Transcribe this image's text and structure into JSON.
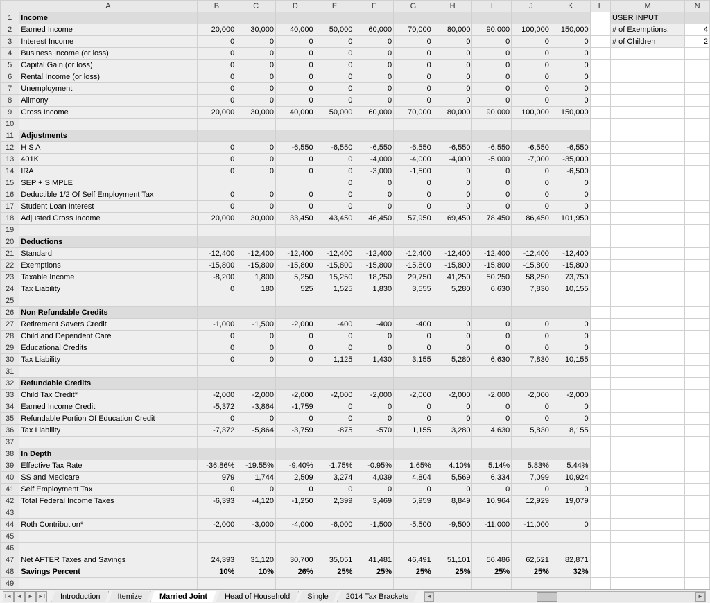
{
  "columns": [
    "",
    "A",
    "B",
    "C",
    "D",
    "E",
    "F",
    "G",
    "H",
    "I",
    "J",
    "K",
    "L",
    "M",
    "N"
  ],
  "user_input": {
    "header": "USER INPUT",
    "rows": [
      {
        "label": "# of Exemptions:",
        "value": "4"
      },
      {
        "label": "# of Children",
        "value": "2"
      }
    ]
  },
  "rows": [
    {
      "n": 1,
      "type": "section",
      "label": "Income"
    },
    {
      "n": 2,
      "type": "data",
      "label": "Earned Income",
      "vals": [
        "20,000",
        "30,000",
        "40,000",
        "50,000",
        "60,000",
        "70,000",
        "80,000",
        "90,000",
        "100,000",
        "150,000"
      ]
    },
    {
      "n": 3,
      "type": "data",
      "label": "Interest Income",
      "vals": [
        "0",
        "0",
        "0",
        "0",
        "0",
        "0",
        "0",
        "0",
        "0",
        "0"
      ]
    },
    {
      "n": 4,
      "type": "data",
      "label": "Business Income (or loss)",
      "vals": [
        "0",
        "0",
        "0",
        "0",
        "0",
        "0",
        "0",
        "0",
        "0",
        "0"
      ]
    },
    {
      "n": 5,
      "type": "data",
      "label": "Capital Gain (or loss)",
      "vals": [
        "0",
        "0",
        "0",
        "0",
        "0",
        "0",
        "0",
        "0",
        "0",
        "0"
      ]
    },
    {
      "n": 6,
      "type": "data",
      "label": "Rental Income (or loss)",
      "vals": [
        "0",
        "0",
        "0",
        "0",
        "0",
        "0",
        "0",
        "0",
        "0",
        "0"
      ]
    },
    {
      "n": 7,
      "type": "data",
      "label": "Unemployment",
      "vals": [
        "0",
        "0",
        "0",
        "0",
        "0",
        "0",
        "0",
        "0",
        "0",
        "0"
      ]
    },
    {
      "n": 8,
      "type": "data",
      "label": "Alimony",
      "vals": [
        "0",
        "0",
        "0",
        "0",
        "0",
        "0",
        "0",
        "0",
        "0",
        "0"
      ]
    },
    {
      "n": 9,
      "type": "data",
      "label": "Gross Income",
      "vals": [
        "20,000",
        "30,000",
        "40,000",
        "50,000",
        "60,000",
        "70,000",
        "80,000",
        "90,000",
        "100,000",
        "150,000"
      ]
    },
    {
      "n": 10,
      "type": "blank"
    },
    {
      "n": 11,
      "type": "section",
      "label": "Adjustments"
    },
    {
      "n": 12,
      "type": "data",
      "label": "H S A",
      "vals": [
        "0",
        "0",
        "-6,550",
        "-6,550",
        "-6,550",
        "-6,550",
        "-6,550",
        "-6,550",
        "-6,550",
        "-6,550"
      ]
    },
    {
      "n": 13,
      "type": "data",
      "label": "401K",
      "vals": [
        "0",
        "0",
        "0",
        "0",
        "-4,000",
        "-4,000",
        "-4,000",
        "-5,000",
        "-7,000",
        "-35,000"
      ]
    },
    {
      "n": 14,
      "type": "data",
      "label": "IRA",
      "vals": [
        "0",
        "0",
        "0",
        "0",
        "-3,000",
        "-1,500",
        "0",
        "0",
        "0",
        "-6,500"
      ]
    },
    {
      "n": 15,
      "type": "data",
      "label": "SEP + SIMPLE",
      "vals": [
        "",
        "",
        "",
        "0",
        "0",
        "0",
        "0",
        "0",
        "0",
        "0"
      ]
    },
    {
      "n": 16,
      "type": "data",
      "label": "Deductible 1/2 Of Self Employment Tax",
      "vals": [
        "0",
        "0",
        "0",
        "0",
        "0",
        "0",
        "0",
        "0",
        "0",
        "0"
      ]
    },
    {
      "n": 17,
      "type": "data",
      "label": "Student Loan Interest",
      "vals": [
        "0",
        "0",
        "0",
        "0",
        "0",
        "0",
        "0",
        "0",
        "0",
        "0"
      ]
    },
    {
      "n": 18,
      "type": "data",
      "label": "Adjusted Gross Income",
      "vals": [
        "20,000",
        "30,000",
        "33,450",
        "43,450",
        "46,450",
        "57,950",
        "69,450",
        "78,450",
        "86,450",
        "101,950"
      ]
    },
    {
      "n": 19,
      "type": "blank"
    },
    {
      "n": 20,
      "type": "section",
      "label": "Deductions"
    },
    {
      "n": 21,
      "type": "data",
      "label": "Standard",
      "vals": [
        "-12,400",
        "-12,400",
        "-12,400",
        "-12,400",
        "-12,400",
        "-12,400",
        "-12,400",
        "-12,400",
        "-12,400",
        "-12,400"
      ]
    },
    {
      "n": 22,
      "type": "data",
      "label": "Exemptions",
      "vals": [
        "-15,800",
        "-15,800",
        "-15,800",
        "-15,800",
        "-15,800",
        "-15,800",
        "-15,800",
        "-15,800",
        "-15,800",
        "-15,800"
      ]
    },
    {
      "n": 23,
      "type": "data",
      "label": "Taxable Income",
      "vals": [
        "-8,200",
        "1,800",
        "5,250",
        "15,250",
        "18,250",
        "29,750",
        "41,250",
        "50,250",
        "58,250",
        "73,750"
      ]
    },
    {
      "n": 24,
      "type": "data",
      "label": "Tax Liability",
      "vals": [
        "0",
        "180",
        "525",
        "1,525",
        "1,830",
        "3,555",
        "5,280",
        "6,630",
        "7,830",
        "10,155"
      ]
    },
    {
      "n": 25,
      "type": "blank"
    },
    {
      "n": 26,
      "type": "section",
      "label": "Non Refundable Credits"
    },
    {
      "n": 27,
      "type": "data",
      "label": "Retirement Savers Credit",
      "vals": [
        "-1,000",
        "-1,500",
        "-2,000",
        "-400",
        "-400",
        "-400",
        "0",
        "0",
        "0",
        "0"
      ]
    },
    {
      "n": 28,
      "type": "data",
      "label": "Child and Dependent Care",
      "vals": [
        "0",
        "0",
        "0",
        "0",
        "0",
        "0",
        "0",
        "0",
        "0",
        "0"
      ]
    },
    {
      "n": 29,
      "type": "data",
      "label": "Educational Credits",
      "vals": [
        "0",
        "0",
        "0",
        "0",
        "0",
        "0",
        "0",
        "0",
        "0",
        "0"
      ]
    },
    {
      "n": 30,
      "type": "data",
      "label": "Tax Liability",
      "vals": [
        "0",
        "0",
        "0",
        "1,125",
        "1,430",
        "3,155",
        "5,280",
        "6,630",
        "7,830",
        "10,155"
      ]
    },
    {
      "n": 31,
      "type": "blank"
    },
    {
      "n": 32,
      "type": "section",
      "label": "Refundable Credits"
    },
    {
      "n": 33,
      "type": "data",
      "label": "Child Tax Credit*",
      "vals": [
        "-2,000",
        "-2,000",
        "-2,000",
        "-2,000",
        "-2,000",
        "-2,000",
        "-2,000",
        "-2,000",
        "-2,000",
        "-2,000"
      ]
    },
    {
      "n": 34,
      "type": "data",
      "label": "Earned Income Credit",
      "vals": [
        "-5,372",
        "-3,864",
        "-1,759",
        "0",
        "0",
        "0",
        "0",
        "0",
        "0",
        "0"
      ]
    },
    {
      "n": 35,
      "type": "data",
      "label": "Refundable Portion Of Education Credit",
      "vals": [
        "0",
        "0",
        "0",
        "0",
        "0",
        "0",
        "0",
        "0",
        "0",
        "0"
      ]
    },
    {
      "n": 36,
      "type": "data",
      "label": "Tax Liability",
      "vals": [
        "-7,372",
        "-5,864",
        "-3,759",
        "-875",
        "-570",
        "1,155",
        "3,280",
        "4,630",
        "5,830",
        "8,155"
      ]
    },
    {
      "n": 37,
      "type": "blank"
    },
    {
      "n": 38,
      "type": "section",
      "label": "In Depth"
    },
    {
      "n": 39,
      "type": "data",
      "label": "Effective Tax Rate",
      "vals": [
        "-36.86%",
        "-19.55%",
        "-9.40%",
        "-1.75%",
        "-0.95%",
        "1.65%",
        "4.10%",
        "5.14%",
        "5.83%",
        "5.44%"
      ]
    },
    {
      "n": 40,
      "type": "data",
      "label": "SS and Medicare",
      "vals": [
        "979",
        "1,744",
        "2,509",
        "3,274",
        "4,039",
        "4,804",
        "5,569",
        "6,334",
        "7,099",
        "10,924"
      ]
    },
    {
      "n": 41,
      "type": "data",
      "label": "Self Employment Tax",
      "vals": [
        "0",
        "0",
        "0",
        "0",
        "0",
        "0",
        "0",
        "0",
        "0",
        "0"
      ]
    },
    {
      "n": 42,
      "type": "data",
      "label": "Total Federal Income Taxes",
      "vals": [
        "-6,393",
        "-4,120",
        "-1,250",
        "2,399",
        "3,469",
        "5,959",
        "8,849",
        "10,964",
        "12,929",
        "19,079"
      ]
    },
    {
      "n": 43,
      "type": "blank"
    },
    {
      "n": 44,
      "type": "data",
      "label": "Roth Contribution*",
      "vals": [
        "-2,000",
        "-3,000",
        "-4,000",
        "-6,000",
        "-1,500",
        "-5,500",
        "-9,500",
        "-11,000",
        "-11,000",
        "0"
      ]
    },
    {
      "n": 45,
      "type": "blank"
    },
    {
      "n": 46,
      "type": "blank"
    },
    {
      "n": 47,
      "type": "data",
      "label": "Net AFTER Taxes and Savings",
      "vals": [
        "24,393",
        "31,120",
        "30,700",
        "35,051",
        "41,481",
        "46,491",
        "51,101",
        "56,486",
        "62,521",
        "82,871"
      ]
    },
    {
      "n": 48,
      "type": "data",
      "bold": true,
      "label": "Savings Percent",
      "vals": [
        "10%",
        "10%",
        "26%",
        "25%",
        "25%",
        "25%",
        "25%",
        "25%",
        "25%",
        "32%"
      ]
    },
    {
      "n": 49,
      "type": "blank"
    }
  ],
  "tabs": {
    "items": [
      "Introduction",
      "Itemize",
      "Married Joint",
      "Head of Household",
      "Single",
      "2014 Tax Brackets"
    ],
    "active": "Married Joint"
  },
  "nav_glyphs": {
    "first": "I◄",
    "prev": "◄",
    "next": "►",
    "last": "►I"
  }
}
